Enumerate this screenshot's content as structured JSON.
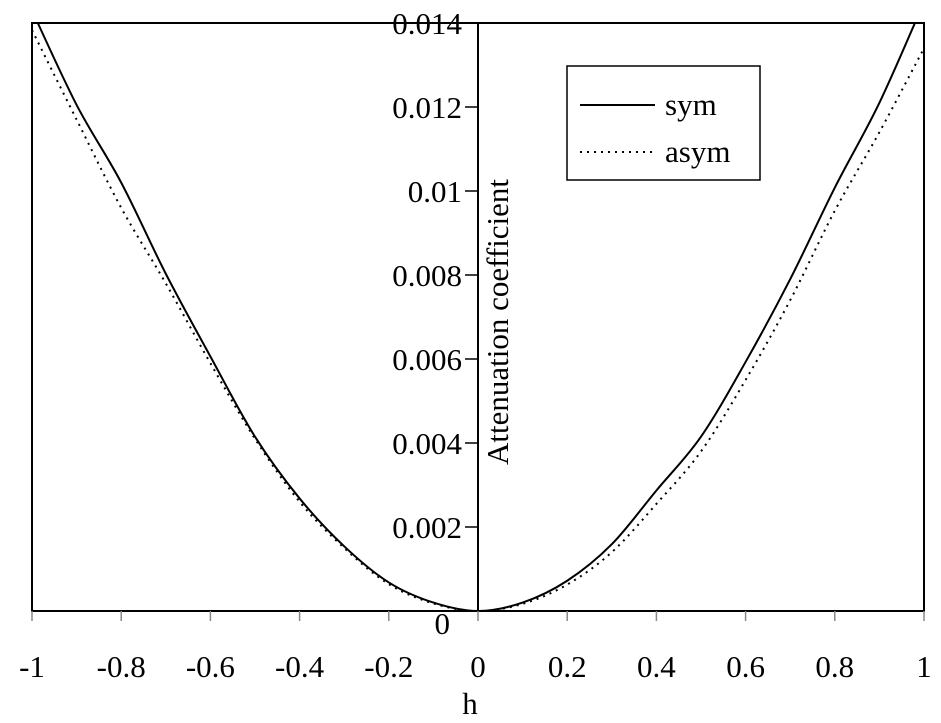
{
  "chart_data": {
    "type": "line",
    "title": "",
    "xlabel": "h",
    "ylabel": "Attenuation coefficient",
    "xlim": [
      -1,
      1
    ],
    "ylim": [
      0,
      0.014
    ],
    "x_ticks": [
      "-1",
      "-0.8",
      "-0.6",
      "-0.4",
      "-0.2",
      "0",
      "0.2",
      "0.4",
      "0.6",
      "0.8",
      "1"
    ],
    "x_tick_values": [
      -1,
      -0.8,
      -0.6,
      -0.4,
      -0.2,
      0,
      0.2,
      0.4,
      0.6,
      0.8,
      1
    ],
    "y_ticks": [
      "0",
      "0.002",
      "0.004",
      "0.006",
      "0.008",
      "0.01",
      "0.012",
      "0.014"
    ],
    "y_tick_values": [
      0,
      0.002,
      0.004,
      0.006,
      0.008,
      0.01,
      0.012,
      0.014
    ],
    "grid": false,
    "legend_position": "top-right",
    "x": [
      -1,
      -0.9,
      -0.8,
      -0.7,
      -0.6,
      -0.5,
      -0.4,
      -0.3,
      -0.2,
      -0.1,
      0,
      0.1,
      0.2,
      0.3,
      0.4,
      0.5,
      0.6,
      0.7,
      0.8,
      0.9,
      1
    ],
    "series": [
      {
        "name": "sym",
        "style": "solid",
        "color": "#000000",
        "values": [
          0.0143,
          0.01205,
          0.0102,
          0.00803,
          0.00606,
          0.00415,
          0.00268,
          0.00154,
          0.00068,
          0.0002,
          0,
          0.0002,
          0.00072,
          0.00159,
          0.00287,
          0.00415,
          0.00593,
          0.0079,
          0.01008,
          0.0121,
          0.0145
        ]
      },
      {
        "name": "asym",
        "style": "dotted",
        "color": "#000000",
        "values": [
          0.01383,
          0.0117,
          0.0096,
          0.0078,
          0.0059,
          0.0041,
          0.0026,
          0.0015,
          0.00064,
          0.00018,
          0,
          0.00017,
          0.00063,
          0.0014,
          0.00255,
          0.0038,
          0.0055,
          0.0074,
          0.00953,
          0.0114,
          0.0134
        ]
      }
    ]
  }
}
